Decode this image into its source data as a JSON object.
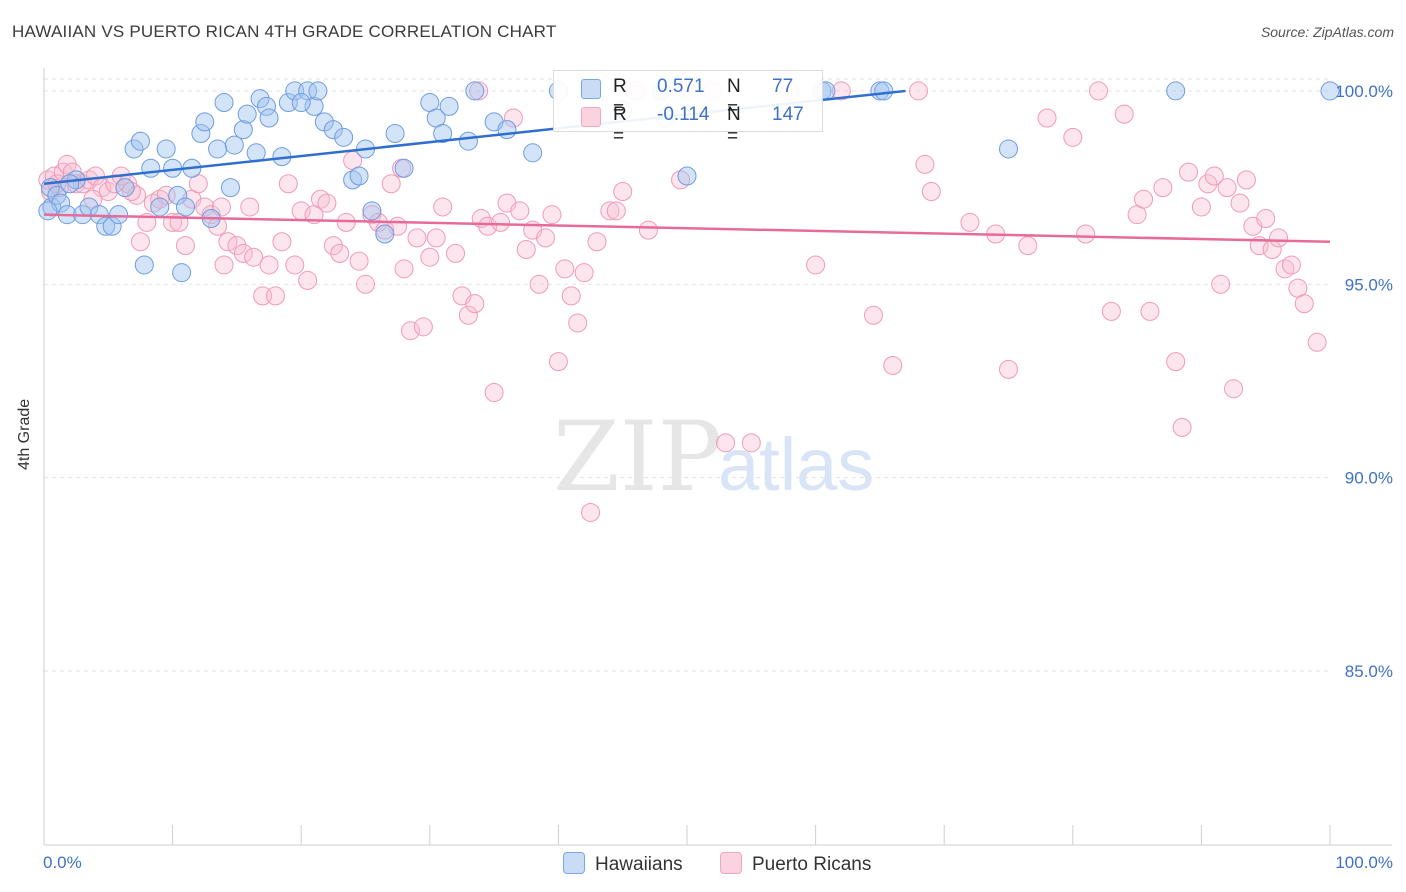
{
  "title": "HAWAIIAN VS PUERTO RICAN 4TH GRADE CORRELATION CHART",
  "source": "Source: ZipAtlas.com",
  "watermark": {
    "zip": "ZIP",
    "atlas": "atlas"
  },
  "legend_top": [
    {
      "r_label": "R =",
      "r_value": "0.571",
      "n_label": "N =",
      "n_value": "77",
      "color": "#7aa7e6"
    },
    {
      "r_label": "R =",
      "r_value": "-0.114",
      "n_label": "N =",
      "n_value": "147",
      "color": "#f4a5bf"
    }
  ],
  "legend_bottom": [
    {
      "label": "Hawaiians",
      "color": "#7aa7e6"
    },
    {
      "label": "Puerto Ricans",
      "color": "#f4a5bf"
    }
  ],
  "chart_data": {
    "type": "scatter",
    "title": "HAWAIIAN VS PUERTO RICAN 4TH GRADE CORRELATION CHART",
    "xlabel": "",
    "ylabel": "4th Grade",
    "xlim": [
      0,
      100
    ],
    "ylim": [
      80.5,
      100.8
    ],
    "x_tick_labels": [
      "0.0%",
      "100.0%"
    ],
    "y_ticks": [
      85,
      90,
      95,
      100
    ],
    "y_tick_labels": [
      "85.0%",
      "90.0%",
      "95.0%",
      "100.0%"
    ],
    "grid": true,
    "series": [
      {
        "name": "Hawaiians",
        "color": "#7aa7e6",
        "trend": {
          "x": [
            0,
            67
          ],
          "y": [
            97.6,
            100.0
          ]
        },
        "points": [
          [
            0.5,
            97.5
          ],
          [
            0.6,
            97.0
          ],
          [
            1.0,
            97.3
          ],
          [
            1.3,
            97.1
          ],
          [
            1.8,
            96.8
          ],
          [
            2.5,
            97.7
          ],
          [
            3.0,
            96.8
          ],
          [
            3.5,
            97.0
          ],
          [
            4.3,
            96.8
          ],
          [
            4.8,
            96.5
          ],
          [
            5.3,
            96.5
          ],
          [
            5.8,
            96.8
          ],
          [
            6.3,
            97.5
          ],
          [
            7.0,
            98.5
          ],
          [
            7.5,
            98.7
          ],
          [
            7.8,
            95.5
          ],
          [
            8.3,
            98.0
          ],
          [
            9.5,
            98.5
          ],
          [
            10.0,
            98.0
          ],
          [
            10.4,
            97.3
          ],
          [
            10.7,
            95.3
          ],
          [
            11.0,
            97.0
          ],
          [
            11.5,
            98.0
          ],
          [
            12.2,
            98.9
          ],
          [
            12.5,
            99.2
          ],
          [
            13.0,
            96.7
          ],
          [
            13.5,
            98.5
          ],
          [
            14.0,
            99.7
          ],
          [
            14.5,
            97.5
          ],
          [
            14.8,
            98.6
          ],
          [
            15.5,
            99.0
          ],
          [
            15.8,
            99.4
          ],
          [
            16.5,
            98.4
          ],
          [
            16.8,
            99.8
          ],
          [
            17.3,
            99.6
          ],
          [
            17.5,
            99.3
          ],
          [
            18.5,
            98.3
          ],
          [
            19.0,
            99.7
          ],
          [
            19.5,
            100.0
          ],
          [
            20.5,
            100.0
          ],
          [
            21.0,
            99.6
          ],
          [
            21.3,
            100.0
          ],
          [
            21.8,
            99.2
          ],
          [
            22.5,
            99.0
          ],
          [
            23.3,
            98.8
          ],
          [
            24.0,
            97.7
          ],
          [
            24.5,
            97.8
          ],
          [
            25.0,
            98.5
          ],
          [
            25.5,
            96.9
          ],
          [
            26.5,
            96.3
          ],
          [
            27.3,
            98.9
          ],
          [
            28.0,
            98.0
          ],
          [
            30.0,
            99.7
          ],
          [
            30.5,
            99.3
          ],
          [
            31.0,
            98.9
          ],
          [
            31.5,
            99.6
          ],
          [
            33.0,
            98.7
          ],
          [
            33.5,
            100.0
          ],
          [
            35.0,
            99.2
          ],
          [
            36.0,
            99.0
          ],
          [
            38.0,
            98.4
          ],
          [
            40.0,
            100.0
          ],
          [
            48.0,
            100.0
          ],
          [
            48.3,
            99.3
          ],
          [
            50.0,
            97.8
          ],
          [
            60.5,
            100.0
          ],
          [
            60.8,
            100.0
          ],
          [
            65.0,
            100.0
          ],
          [
            65.3,
            100.0
          ],
          [
            75.0,
            98.5
          ],
          [
            88.0,
            100.0
          ],
          [
            100.0,
            100.0
          ],
          [
            0.3,
            96.9
          ],
          [
            2.0,
            97.6
          ],
          [
            9.0,
            97.0
          ],
          [
            20.0,
            99.7
          ],
          [
            45.0,
            99.5
          ]
        ]
      },
      {
        "name": "Puerto Ricans",
        "color": "#f4a5bf",
        "trend": {
          "x": [
            0,
            100
          ],
          "y": [
            96.8,
            96.1
          ]
        },
        "points": [
          [
            0.3,
            97.7
          ],
          [
            0.5,
            97.4
          ],
          [
            0.8,
            97.8
          ],
          [
            1.2,
            97.5
          ],
          [
            1.5,
            97.9
          ],
          [
            1.8,
            98.1
          ],
          [
            2.2,
            97.9
          ],
          [
            2.5,
            97.6
          ],
          [
            3.0,
            97.6
          ],
          [
            3.5,
            97.7
          ],
          [
            4.0,
            97.8
          ],
          [
            4.5,
            97.5
          ],
          [
            5.0,
            97.4
          ],
          [
            5.5,
            97.6
          ],
          [
            6.0,
            97.8
          ],
          [
            6.5,
            97.6
          ],
          [
            7.2,
            97.3
          ],
          [
            7.5,
            96.1
          ],
          [
            8.0,
            96.6
          ],
          [
            8.5,
            97.1
          ],
          [
            9.0,
            97.2
          ],
          [
            9.5,
            97.3
          ],
          [
            10.0,
            96.6
          ],
          [
            10.5,
            96.6
          ],
          [
            11.0,
            96.0
          ],
          [
            11.5,
            97.2
          ],
          [
            12.0,
            97.6
          ],
          [
            12.5,
            97.0
          ],
          [
            13.0,
            96.8
          ],
          [
            13.5,
            96.5
          ],
          [
            14.0,
            95.5
          ],
          [
            14.3,
            96.1
          ],
          [
            15.0,
            96.0
          ],
          [
            15.5,
            95.8
          ],
          [
            16.0,
            97.0
          ],
          [
            16.3,
            95.7
          ],
          [
            17.0,
            94.7
          ],
          [
            17.5,
            95.5
          ],
          [
            18.0,
            94.7
          ],
          [
            18.5,
            96.1
          ],
          [
            19.0,
            97.6
          ],
          [
            19.5,
            95.5
          ],
          [
            20.0,
            96.9
          ],
          [
            20.5,
            95.1
          ],
          [
            21.0,
            96.8
          ],
          [
            21.5,
            97.2
          ],
          [
            22.0,
            97.1
          ],
          [
            22.5,
            96.0
          ],
          [
            23.0,
            95.8
          ],
          [
            23.5,
            96.6
          ],
          [
            24.0,
            98.2
          ],
          [
            24.5,
            95.6
          ],
          [
            25.0,
            95.0
          ],
          [
            25.5,
            96.8
          ],
          [
            26.0,
            96.6
          ],
          [
            26.5,
            96.4
          ],
          [
            27.0,
            97.6
          ],
          [
            27.5,
            96.5
          ],
          [
            28.0,
            95.4
          ],
          [
            28.5,
            93.8
          ],
          [
            29.0,
            96.2
          ],
          [
            29.5,
            93.9
          ],
          [
            30.0,
            95.7
          ],
          [
            30.5,
            96.2
          ],
          [
            31.0,
            97.0
          ],
          [
            32.0,
            95.8
          ],
          [
            32.5,
            94.7
          ],
          [
            33.0,
            94.2
          ],
          [
            33.5,
            94.5
          ],
          [
            34.0,
            96.7
          ],
          [
            34.5,
            96.5
          ],
          [
            35.0,
            92.2
          ],
          [
            35.5,
            96.6
          ],
          [
            36.0,
            97.1
          ],
          [
            37.0,
            96.9
          ],
          [
            37.5,
            95.9
          ],
          [
            38.0,
            96.4
          ],
          [
            38.5,
            95.0
          ],
          [
            39.0,
            96.2
          ],
          [
            39.5,
            96.8
          ],
          [
            40.0,
            93.0
          ],
          [
            40.5,
            95.4
          ],
          [
            41.0,
            94.7
          ],
          [
            41.5,
            94.0
          ],
          [
            42.0,
            95.3
          ],
          [
            42.5,
            89.1
          ],
          [
            43.0,
            96.1
          ],
          [
            44.0,
            96.9
          ],
          [
            44.5,
            96.9
          ],
          [
            45.0,
            97.4
          ],
          [
            46.0,
            100.0
          ],
          [
            47.0,
            96.4
          ],
          [
            50.0,
            100.0
          ],
          [
            52.0,
            100.0
          ],
          [
            53.0,
            90.9
          ],
          [
            55.0,
            90.9
          ],
          [
            58.0,
            100.0
          ],
          [
            60.0,
            95.5
          ],
          [
            62.0,
            100.0
          ],
          [
            64.5,
            94.2
          ],
          [
            66.0,
            92.9
          ],
          [
            68.0,
            100.0
          ],
          [
            68.5,
            98.1
          ],
          [
            69.0,
            97.4
          ],
          [
            72.0,
            96.6
          ],
          [
            74.0,
            96.3
          ],
          [
            75.0,
            92.8
          ],
          [
            76.5,
            96.0
          ],
          [
            78.0,
            99.3
          ],
          [
            80.0,
            98.8
          ],
          [
            81.0,
            96.3
          ],
          [
            82.0,
            100.0
          ],
          [
            83.0,
            94.3
          ],
          [
            84.0,
            99.4
          ],
          [
            85.0,
            96.8
          ],
          [
            85.5,
            97.2
          ],
          [
            86.0,
            94.3
          ],
          [
            87.0,
            97.5
          ],
          [
            88.0,
            93.0
          ],
          [
            88.5,
            91.3
          ],
          [
            89.0,
            97.9
          ],
          [
            90.0,
            97.0
          ],
          [
            90.5,
            97.6
          ],
          [
            91.0,
            97.8
          ],
          [
            91.5,
            95.0
          ],
          [
            92.0,
            97.5
          ],
          [
            92.5,
            92.3
          ],
          [
            93.0,
            97.1
          ],
          [
            93.5,
            97.7
          ],
          [
            94.0,
            96.5
          ],
          [
            94.5,
            96.0
          ],
          [
            95.0,
            96.7
          ],
          [
            95.5,
            95.9
          ],
          [
            96.0,
            96.2
          ],
          [
            96.5,
            95.4
          ],
          [
            97.0,
            95.5
          ],
          [
            97.5,
            94.9
          ],
          [
            98.0,
            94.5
          ],
          [
            99.0,
            93.5
          ],
          [
            1.0,
            97.6
          ],
          [
            3.8,
            97.2
          ],
          [
            6.8,
            97.4
          ],
          [
            13.8,
            97.0
          ],
          [
            27.8,
            98.0
          ],
          [
            36.5,
            99.3
          ],
          [
            49.5,
            97.7
          ],
          [
            33.8,
            100.0
          ]
        ]
      }
    ]
  }
}
